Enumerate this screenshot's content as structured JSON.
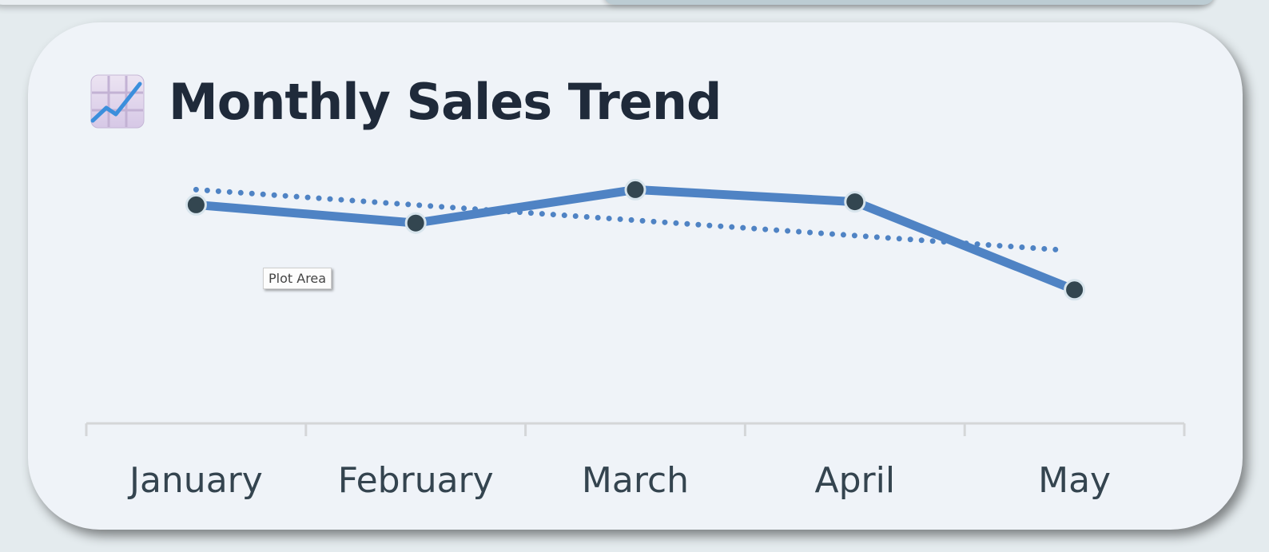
{
  "header": {
    "icon": "chart-increasing-icon",
    "title": "Monthly Sales Trend"
  },
  "tooltip": {
    "label": "Plot Area"
  },
  "chart_data": {
    "type": "line",
    "title": "Monthly Sales Trend",
    "categories": [
      "January",
      "February",
      "March",
      "April",
      "May"
    ],
    "series": [
      {
        "values": [
          72,
          66,
          77,
          73,
          44
        ],
        "color": "#4f83c4",
        "marker_color": "#334650"
      }
    ],
    "trendline": {
      "style": "dotted",
      "color": "#4f83c4",
      "start": 77,
      "end": 57
    },
    "ylim": [
      0,
      100
    ],
    "yaxis_visible": false,
    "grid": false,
    "legend": "none",
    "xlabel": "",
    "ylabel": ""
  }
}
